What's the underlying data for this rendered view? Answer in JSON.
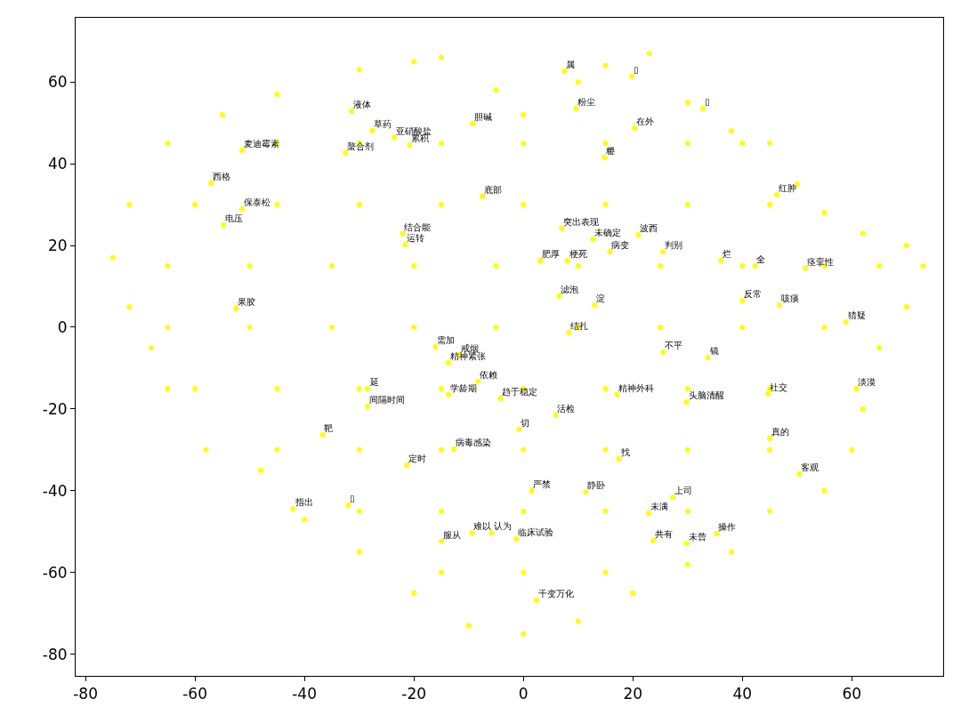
{
  "chart_data": {
    "type": "scatter",
    "marker": "circle",
    "xlim": [
      -81.8,
      76.7
    ],
    "ylim": [
      -85.3,
      75.7
    ],
    "xticks": [
      -80,
      -60,
      -40,
      -20,
      0,
      20,
      40,
      60
    ],
    "yticks": [
      -80,
      -60,
      -40,
      -20,
      0,
      20,
      40,
      60
    ],
    "series": [
      {
        "color": "#ffff00",
        "x": [
          -75,
          -72,
          -65,
          -55,
          -45,
          -30,
          -20,
          -15,
          -5,
          0,
          10,
          15,
          23,
          30,
          38,
          45,
          50,
          55,
          62,
          70,
          73,
          70,
          65,
          62,
          60,
          55,
          45,
          38,
          30,
          20,
          10,
          0,
          -10,
          -20,
          -30,
          -40,
          -48,
          -58,
          -65,
          -68,
          -72,
          -45,
          -30,
          -15,
          0,
          15,
          30,
          40,
          -60,
          -45,
          -30,
          -15,
          0,
          15,
          30,
          45,
          -65,
          -50,
          -35,
          -20,
          -5,
          10,
          25,
          40,
          55,
          65,
          -65,
          -50,
          -35,
          -20,
          -5,
          10,
          25,
          40,
          55,
          -60,
          -45,
          -30,
          -15,
          0,
          15,
          30,
          45,
          -45,
          -30,
          -15,
          0,
          15,
          30,
          45,
          -30,
          -15,
          0,
          15,
          30,
          -15,
          0,
          15,
          -31.4,
          -27.6,
          -23.6,
          -20.8,
          -51.4,
          -32.5,
          -9.3,
          -57.1,
          -7.5,
          -51.4,
          -54.8,
          -22.1,
          -21.6,
          -52.5,
          7.5,
          19.8,
          9.6,
          32.8,
          20.3,
          14.8,
          46.3,
          7.0,
          12.7,
          21.0,
          15.8,
          25.5,
          3.1,
          8.0,
          36.1,
          42.3,
          51.5,
          6.5,
          13.0,
          40.0,
          46.8,
          58.9,
          60.8,
          -16.1,
          -11.7,
          -13.7,
          -8.3,
          -28.5,
          -13.7,
          -4.2,
          -28.5,
          -0.8,
          -36.7,
          -12.7,
          -21.3,
          -42.1,
          -32.0,
          8.3,
          25.5,
          33.7,
          17.1,
          29.8,
          44.7,
          5.9,
          45.0,
          17.4,
          50.4,
          1.5,
          11.4,
          27.3,
          22.9,
          35.3,
          23.7,
          29.8,
          -15.0,
          -9.4,
          -5.8,
          -1.3,
          2.4
        ],
        "values": [
          17,
          30,
          45,
          52,
          57,
          63,
          65,
          66,
          58,
          52,
          60,
          64,
          67,
          55,
          48,
          45,
          35,
          28,
          23,
          20,
          15,
          5,
          -5,
          -20,
          -30,
          -40,
          -45,
          -55,
          -58,
          -65,
          -72,
          -75,
          -73,
          -65,
          -55,
          -47,
          -35,
          -30,
          -15,
          -5,
          5,
          45,
          45,
          45,
          45,
          45,
          45,
          45,
          30,
          30,
          30,
          30,
          30,
          30,
          30,
          30,
          15,
          15,
          15,
          15,
          15,
          15,
          15,
          15,
          15,
          15,
          0,
          0,
          0,
          0,
          0,
          0,
          0,
          0,
          0,
          -15,
          -15,
          -15,
          -15,
          -15,
          -15,
          -15,
          -15,
          -30,
          -30,
          -30,
          -30,
          -30,
          -30,
          -30,
          -45,
          -45,
          -45,
          -45,
          -45,
          -60,
          -60,
          -60,
          52.9,
          48.1,
          46.4,
          44.6,
          43.3,
          42.7,
          49.8,
          35.3,
          32.0,
          28.9,
          25.0,
          22.9,
          20.2,
          4.6,
          62.7,
          61.4,
          53.5,
          53.5,
          48.7,
          41.6,
          32.4,
          24.2,
          21.5,
          22.6,
          18.5,
          18.5,
          16.3,
          16.3,
          16.3,
          15.0,
          14.4,
          7.6,
          5.4,
          6.5,
          5.4,
          1.3,
          -15.0,
          -4.8,
          -6.7,
          -8.7,
          -13.3,
          -15.0,
          -16.5,
          -17.4,
          -19.4,
          -25.0,
          -26.3,
          -29.8,
          -33.7,
          -44.4,
          -43.5,
          -1.3,
          -6.1,
          -7.4,
          -16.5,
          -18.3,
          -16.3,
          -21.5,
          -27.2,
          -32.2,
          -35.9,
          -40.0,
          -40.3,
          -41.6,
          -45.5,
          -50.5,
          -52.2,
          -52.9,
          -52.4,
          -50.3,
          -50.3,
          -51.8,
          -66.8
        ]
      }
    ],
    "annotations": [
      {
        "text": "液体",
        "x": -31.4,
        "y": 52.9
      },
      {
        "text": "草药",
        "x": -27.6,
        "y": 48.1
      },
      {
        "text": "亚硝酸盐",
        "x": -23.6,
        "y": 46.4
      },
      {
        "text": "累积",
        "x": -20.8,
        "y": 44.6
      },
      {
        "text": "麦迪霉素",
        "x": -51.4,
        "y": 43.3
      },
      {
        "text": "螯合剂",
        "x": -32.5,
        "y": 42.7
      },
      {
        "text": "胆碱",
        "x": -9.3,
        "y": 49.8
      },
      {
        "text": "西格",
        "x": -57.1,
        "y": 35.3
      },
      {
        "text": "底部",
        "x": -7.5,
        "y": 32.0
      },
      {
        "text": "保泰松",
        "x": -51.4,
        "y": 28.9
      },
      {
        "text": "电压",
        "x": -54.8,
        "y": 25.0
      },
      {
        "text": "结合能",
        "x": -22.1,
        "y": 22.9
      },
      {
        "text": "运转",
        "x": -21.6,
        "y": 20.2
      },
      {
        "text": "果胶",
        "x": -52.5,
        "y": 4.6
      },
      {
        "text": "属",
        "x": 7.5,
        "y": 62.7
      },
      {
        "text": "▯",
        "x": 19.8,
        "y": 61.4
      },
      {
        "text": "粉尘",
        "x": 9.6,
        "y": 53.5
      },
      {
        "text": "▯",
        "x": 32.8,
        "y": 53.5
      },
      {
        "text": "在外",
        "x": 20.3,
        "y": 48.7
      },
      {
        "text": "糉",
        "x": 14.8,
        "y": 41.6
      },
      {
        "text": "红肿",
        "x": 46.3,
        "y": 32.4
      },
      {
        "text": "突出表现",
        "x": 7.0,
        "y": 24.2
      },
      {
        "text": "未确定",
        "x": 12.7,
        "y": 21.5
      },
      {
        "text": "波西",
        "x": 21.0,
        "y": 22.6
      },
      {
        "text": "病变",
        "x": 15.8,
        "y": 18.5
      },
      {
        "text": "判别",
        "x": 25.5,
        "y": 18.5
      },
      {
        "text": "肥厚",
        "x": 3.1,
        "y": 16.3
      },
      {
        "text": "梗死",
        "x": 8.0,
        "y": 16.3
      },
      {
        "text": "烂",
        "x": 36.1,
        "y": 16.3
      },
      {
        "text": "全",
        "x": 42.3,
        "y": 15.0
      },
      {
        "text": "痉挛性",
        "x": 51.5,
        "y": 14.4
      },
      {
        "text": "滤泡",
        "x": 6.5,
        "y": 7.6
      },
      {
        "text": "淀",
        "x": 13.0,
        "y": 5.4
      },
      {
        "text": "反常",
        "x": 40.0,
        "y": 6.5
      },
      {
        "text": "咳痰",
        "x": 46.8,
        "y": 5.4
      },
      {
        "text": "猜疑",
        "x": 58.9,
        "y": 1.3
      },
      {
        "text": "淡漠",
        "x": 60.8,
        "y": -15.0
      },
      {
        "text": "需加",
        "x": -16.1,
        "y": -4.8
      },
      {
        "text": "戒烟",
        "x": -11.7,
        "y": -6.7
      },
      {
        "text": "精神紧张",
        "x": -13.7,
        "y": -8.7
      },
      {
        "text": "依赖",
        "x": -8.3,
        "y": -13.3
      },
      {
        "text": "延",
        "x": -28.5,
        "y": -15.0
      },
      {
        "text": "学龄期",
        "x": -13.7,
        "y": -16.5
      },
      {
        "text": "趋于稳定",
        "x": -4.2,
        "y": -17.4
      },
      {
        "text": "间隔时间",
        "x": -28.5,
        "y": -19.4
      },
      {
        "text": "切",
        "x": -0.8,
        "y": -25.0
      },
      {
        "text": "靶",
        "x": -36.7,
        "y": -26.3
      },
      {
        "text": "病毒感染",
        "x": -12.7,
        "y": -29.8
      },
      {
        "text": "定时",
        "x": -21.3,
        "y": -33.7
      },
      {
        "text": "指出",
        "x": -42.1,
        "y": -44.4
      },
      {
        "text": "▯",
        "x": -32.0,
        "y": -43.5
      },
      {
        "text": "结扎",
        "x": 8.3,
        "y": -1.3
      },
      {
        "text": "不平",
        "x": 25.5,
        "y": -6.1
      },
      {
        "text": "镜",
        "x": 33.7,
        "y": -7.4
      },
      {
        "text": "精神外科",
        "x": 17.1,
        "y": -16.5
      },
      {
        "text": "头脑清醒",
        "x": 29.8,
        "y": -18.3
      },
      {
        "text": "社交",
        "x": 44.7,
        "y": -16.3
      },
      {
        "text": "活检",
        "x": 5.9,
        "y": -21.5
      },
      {
        "text": "真的",
        "x": 45.0,
        "y": -27.2
      },
      {
        "text": "找",
        "x": 17.4,
        "y": -32.2
      },
      {
        "text": "客观",
        "x": 50.4,
        "y": -35.9
      },
      {
        "text": "严禁",
        "x": 1.5,
        "y": -40.0
      },
      {
        "text": "静卧",
        "x": 11.4,
        "y": -40.3
      },
      {
        "text": "上司",
        "x": 27.3,
        "y": -41.6
      },
      {
        "text": "未满",
        "x": 22.9,
        "y": -45.5
      },
      {
        "text": "操作",
        "x": 35.3,
        "y": -50.5
      },
      {
        "text": "共有",
        "x": 23.7,
        "y": -52.2
      },
      {
        "text": "未曾",
        "x": 29.8,
        "y": -52.9
      },
      {
        "text": "服从",
        "x": -15.0,
        "y": -52.4
      },
      {
        "text": "难以",
        "x": -9.4,
        "y": -50.3
      },
      {
        "text": "认为",
        "x": -5.8,
        "y": -50.3
      },
      {
        "text": "临床试验",
        "x": -1.3,
        "y": -51.8
      },
      {
        "text": "千变万化",
        "x": 2.4,
        "y": -66.8
      }
    ]
  }
}
